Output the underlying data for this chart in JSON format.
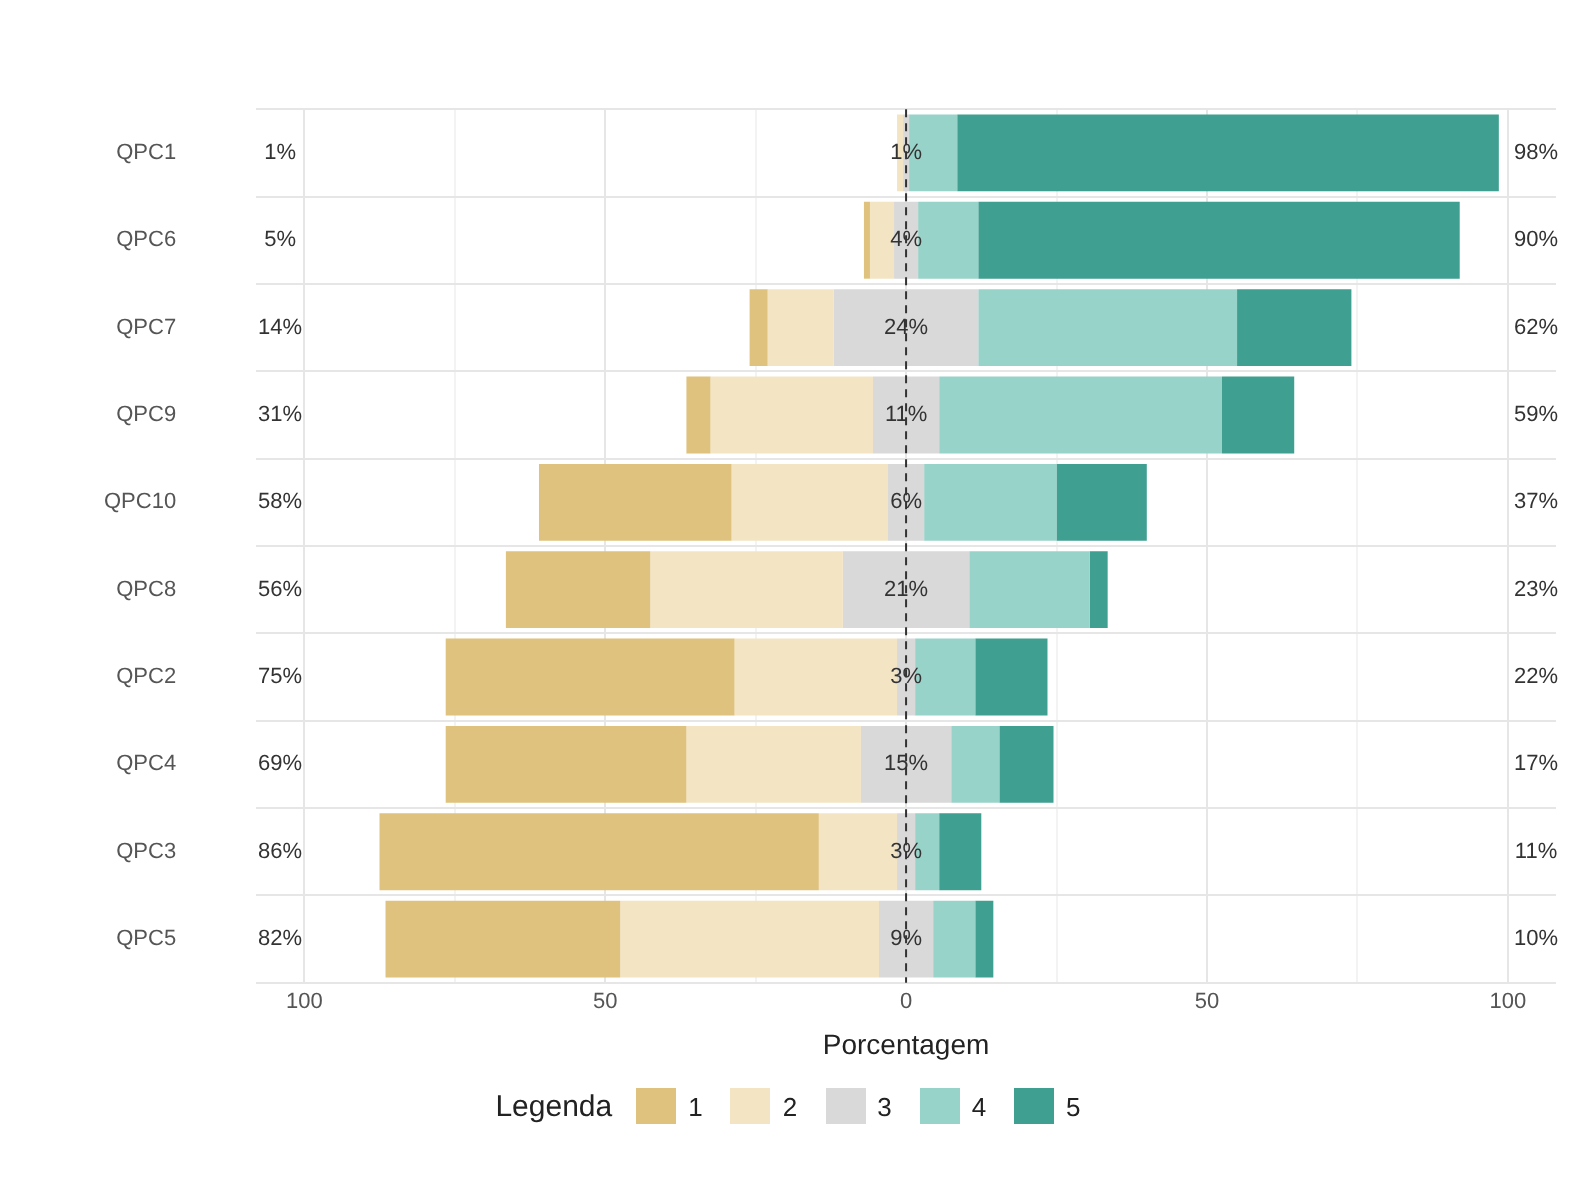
{
  "chart_data": {
    "type": "bar",
    "orientation": "horizontal",
    "xlabel": "Porcentagem",
    "legend_title": "Legenda",
    "legend": "bottom",
    "grid": true,
    "categories": [
      "QPC1",
      "QPC6",
      "QPC7",
      "QPC9",
      "QPC10",
      "QPC8",
      "QPC2",
      "QPC4",
      "QPC3",
      "QPC5"
    ],
    "xlim": [
      -108,
      108
    ],
    "xticks": [
      {
        "value": -100,
        "label": "100"
      },
      {
        "value": -75,
        "label": null
      },
      {
        "value": -50,
        "label": "50"
      },
      {
        "value": -25,
        "label": null
      },
      0,
      {
        "value": 25,
        "label": null
      },
      50,
      {
        "value": 75,
        "label": null
      },
      100
    ],
    "ref_lines": [
      {
        "axis": "x",
        "value": 0,
        "line_style": "dashed",
        "color": "#333333"
      }
    ],
    "series": [
      {
        "name": "1",
        "color": "#dfc27d",
        "values": [
          null,
          1,
          3,
          4,
          32,
          24,
          48,
          40,
          73,
          39
        ],
        "base": [
          null,
          -7,
          -26,
          -36.5,
          -61,
          -66.5,
          -76.5,
          -76.5,
          -87.5,
          -86.5
        ]
      },
      {
        "name": "2",
        "color": "#f3e4c4",
        "values": [
          1,
          4,
          11,
          27,
          26,
          32,
          27,
          29,
          13,
          43
        ],
        "base": [
          -1.5,
          -6,
          -23,
          -32.5,
          -29,
          -42.5,
          -28.5,
          -36.5,
          -14.5,
          -47.5
        ]
      },
      {
        "name": "3",
        "color": "#d9d9d9",
        "values": [
          1,
          4,
          24,
          11,
          6,
          21,
          3,
          15,
          3,
          9
        ],
        "base": [
          -0.5,
          -2,
          -12,
          -5.5,
          -3,
          -10.5,
          -1.5,
          -7.5,
          -1.5,
          -4.5
        ],
        "value_labels": [
          "1%",
          "4%",
          "24%",
          "11%",
          "6%",
          "21%",
          "3%",
          "15%",
          "3%",
          "9%"
        ]
      },
      {
        "name": "4",
        "color": "#98d3c9",
        "values": [
          8,
          10,
          43,
          47,
          22,
          20,
          10,
          8,
          4,
          7
        ],
        "base": [
          0.5,
          2,
          12,
          5.5,
          3,
          10.5,
          1.5,
          7.5,
          1.5,
          4.5
        ]
      },
      {
        "name": "5",
        "color": "#3f9f90",
        "values": [
          90,
          80,
          19,
          12,
          15,
          3,
          12,
          9,
          7,
          3
        ],
        "base": [
          8.5,
          12,
          55,
          52.5,
          25,
          30.5,
          11.5,
          15.5,
          5.5,
          11.5
        ]
      }
    ],
    "annotations": [
      "1%",
      "5%",
      "14%",
      "31%",
      "58%",
      "56%",
      "75%",
      "69%",
      "86%",
      "82%",
      "98%",
      "90%",
      "62%",
      "59%",
      "37%",
      "23%",
      "22%",
      "17%",
      "11%",
      "10%"
    ]
  }
}
